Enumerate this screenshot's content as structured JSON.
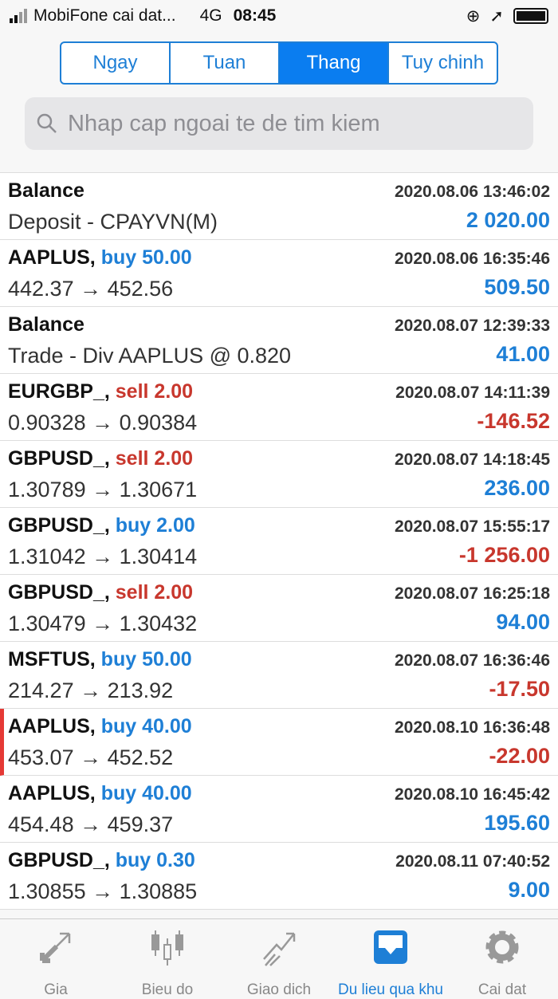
{
  "status": {
    "carrier": "MobiFone cai dat...",
    "network": "4G",
    "time": "08:45"
  },
  "segments": [
    {
      "label": "Ngay",
      "active": false
    },
    {
      "label": "Tuan",
      "active": false
    },
    {
      "label": "Thang",
      "active": true
    },
    {
      "label": "Tuy chinh",
      "active": false
    }
  ],
  "search": {
    "placeholder": "Nhap cap ngoai te de tim kiem"
  },
  "rows": [
    {
      "symbol": "Balance",
      "side": "",
      "side_type": "",
      "detail": "Deposit - CPAYVN(M)",
      "date": "2020.08.06 13:46:02",
      "value": "2 020.00",
      "negative": false
    },
    {
      "symbol": "AAPLUS,",
      "side": "buy 50.00",
      "side_type": "buy",
      "detail": "442.37 → 452.56",
      "date": "2020.08.06 16:35:46",
      "value": "509.50",
      "negative": false
    },
    {
      "symbol": "Balance",
      "side": "",
      "side_type": "",
      "detail": "Trade - Div AAPLUS @ 0.820",
      "date": "2020.08.07 12:39:33",
      "value": "41.00",
      "negative": false
    },
    {
      "symbol": "EURGBP_,",
      "side": "sell 2.00",
      "side_type": "sell",
      "detail": "0.90328 → 0.90384",
      "date": "2020.08.07 14:11:39",
      "value": "-146.52",
      "negative": true
    },
    {
      "symbol": "GBPUSD_,",
      "side": "sell 2.00",
      "side_type": "sell",
      "detail": "1.30789 → 1.30671",
      "date": "2020.08.07 14:18:45",
      "value": "236.00",
      "negative": false
    },
    {
      "symbol": "GBPUSD_,",
      "side": "buy 2.00",
      "side_type": "buy",
      "detail": "1.31042 → 1.30414",
      "date": "2020.08.07 15:55:17",
      "value": "-1 256.00",
      "negative": true
    },
    {
      "symbol": "GBPUSD_,",
      "side": "sell 2.00",
      "side_type": "sell",
      "detail": "1.30479 → 1.30432",
      "date": "2020.08.07 16:25:18",
      "value": "94.00",
      "negative": false
    },
    {
      "symbol": "MSFTUS,",
      "side": "buy 50.00",
      "side_type": "buy",
      "detail": "214.27 → 213.92",
      "date": "2020.08.07 16:36:46",
      "value": "-17.50",
      "negative": true
    },
    {
      "symbol": "AAPLUS,",
      "side": "buy 40.00",
      "side_type": "buy",
      "detail": "453.07 → 452.52",
      "date": "2020.08.10 16:36:48",
      "value": "-22.00",
      "negative": true,
      "marked": true
    },
    {
      "symbol": "AAPLUS,",
      "side": "buy 40.00",
      "side_type": "buy",
      "detail": "454.48 → 459.37",
      "date": "2020.08.10 16:45:42",
      "value": "195.60",
      "negative": false
    },
    {
      "symbol": "GBPUSD_,",
      "side": "buy 0.30",
      "side_type": "buy",
      "detail": "1.30855 → 1.30885",
      "date": "2020.08.11 07:40:52",
      "value": "9.00",
      "negative": false
    }
  ],
  "tabs": [
    {
      "label": "Gia",
      "icon": "quotes-arrows-icon"
    },
    {
      "label": "Bieu do",
      "icon": "candlestick-chart-icon"
    },
    {
      "label": "Giao dich",
      "icon": "trade-trend-icon"
    },
    {
      "label": "Du lieu qua khu",
      "icon": "history-inbox-icon",
      "active": true
    },
    {
      "label": "Cai dat",
      "icon": "gear-icon"
    }
  ],
  "colors": {
    "accent": "#1e7fd6",
    "negative": "#c8372d",
    "marker": "#e53935"
  }
}
